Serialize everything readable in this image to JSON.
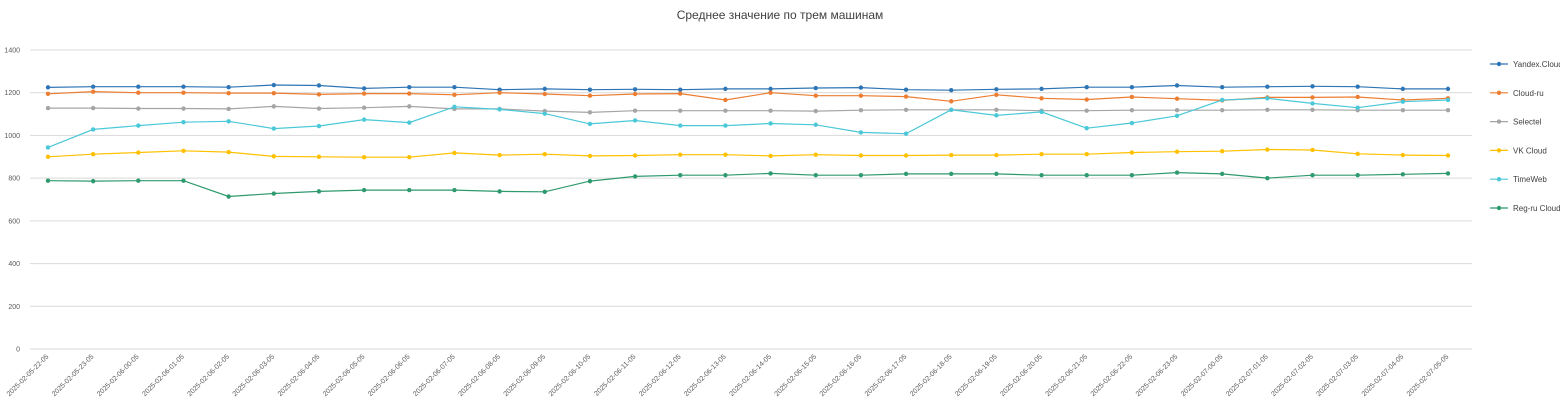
{
  "chart_data": {
    "type": "line",
    "title": "Среднее значение по трем машинам",
    "xlabel": "",
    "ylabel": "",
    "ylim": [
      0,
      1400
    ],
    "yticks": [
      0,
      200,
      400,
      600,
      800,
      1000,
      1200,
      1400
    ],
    "grid": true,
    "legend_position": "right",
    "categories": [
      "2025-02-05-22-05",
      "2025-02-05-23-05",
      "2025-02-06-00-05",
      "2025-02-06-01-05",
      "2025-02-06-02-05",
      "2025-02-06-03-05",
      "2025-02-06-04-05",
      "2025-02-06-05-05",
      "2025-02-06-06-05",
      "2025-02-06-07-05",
      "2025-02-06-08-05",
      "2025-02-06-09-05",
      "2025-02-06-10-05",
      "2025-02-06-11-05",
      "2025-02-06-12-05",
      "2025-02-06-13-05",
      "2025-02-06-14-05",
      "2025-02-06-15-05",
      "2025-02-06-16-05",
      "2025-02-06-17-05",
      "2025-02-06-18-05",
      "2025-02-06-19-05",
      "2025-02-06-20-05",
      "2025-02-06-21-05",
      "2025-02-06-22-05",
      "2025-02-06-23-05",
      "2025-02-07-00-05",
      "2025-02-07-01-05",
      "2025-02-07-02-05",
      "2025-02-07-03-05",
      "2025-02-07-04-05",
      "2025-02-07-05-05"
    ],
    "series": [
      {
        "name": "Yandex.Cloud",
        "color": "#2e75b6",
        "values": [
          1225,
          1228,
          1228,
          1228,
          1226,
          1236,
          1234,
          1220,
          1226,
          1226,
          1214,
          1218,
          1214,
          1216,
          1214,
          1218,
          1218,
          1222,
          1224,
          1214,
          1212,
          1216,
          1218,
          1226,
          1226,
          1234,
          1226,
          1228,
          1230,
          1228,
          1218,
          1218
        ]
      },
      {
        "name": "Cloud-ru",
        "color": "#ed7d31",
        "values": [
          1195,
          1205,
          1200,
          1200,
          1198,
          1198,
          1192,
          1196,
          1196,
          1190,
          1200,
          1194,
          1186,
          1194,
          1196,
          1166,
          1200,
          1186,
          1186,
          1182,
          1160,
          1190,
          1174,
          1168,
          1180,
          1172,
          1164,
          1178,
          1178,
          1180,
          1166,
          1174
        ]
      },
      {
        "name": "Selectel",
        "color": "#a5a5a5",
        "values": [
          1128,
          1128,
          1126,
          1126,
          1124,
          1136,
          1126,
          1130,
          1136,
          1124,
          1124,
          1114,
          1108,
          1116,
          1116,
          1116,
          1116,
          1114,
          1118,
          1120,
          1120,
          1120,
          1116,
          1116,
          1118,
          1118,
          1118,
          1120,
          1120,
          1118,
          1118,
          1118
        ]
      },
      {
        "name": "VK Cloud",
        "color": "#ffc000",
        "values": [
          900,
          912,
          920,
          928,
          922,
          902,
          900,
          898,
          898,
          918,
          908,
          912,
          904,
          906,
          910,
          910,
          904,
          910,
          906,
          906,
          908,
          908,
          912,
          912,
          920,
          924,
          926,
          934,
          932,
          914,
          908,
          906
        ]
      },
      {
        "name": "TimeWeb",
        "color": "#4bc8d8",
        "values": [
          944,
          1028,
          1046,
          1062,
          1066,
          1032,
          1044,
          1074,
          1060,
          1134,
          1122,
          1102,
          1054,
          1070,
          1046,
          1046,
          1056,
          1050,
          1014,
          1008,
          1120,
          1094,
          1110,
          1034,
          1058,
          1092,
          1166,
          1174,
          1150,
          1130,
          1158,
          1166
        ]
      },
      {
        "name": "Reg-ru Cloud",
        "color": "#2e9a6e",
        "values": [
          788,
          786,
          788,
          788,
          714,
          728,
          738,
          744,
          744,
          744,
          738,
          736,
          786,
          808,
          814,
          814,
          822,
          814,
          814,
          820,
          820,
          820,
          814,
          814,
          814,
          826,
          820,
          800,
          814,
          814,
          818,
          822
        ]
      }
    ]
  }
}
